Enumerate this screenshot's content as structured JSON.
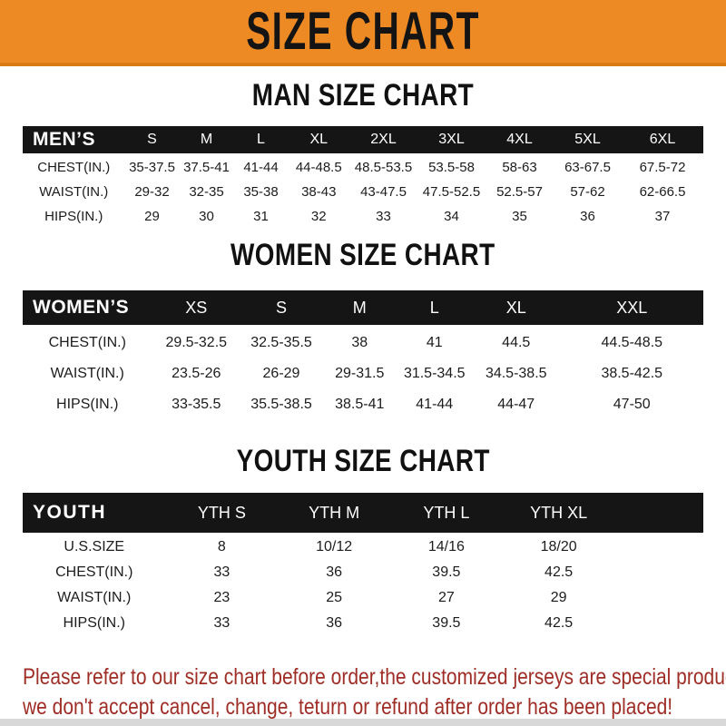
{
  "banner": {
    "title": "SIZE CHART"
  },
  "colors": {
    "banner_orange": "#ED8A23",
    "banner_edge_orange": "#D87B13",
    "header_bar_black": "#151515",
    "row_shade_gray": "#E6E5E5",
    "footer_red": "#9E2D26"
  },
  "sections": [
    {
      "id": "men",
      "heading": "MAN SIZE CHART",
      "table": {
        "label": "MEN’S",
        "columns": [
          "S",
          "M",
          "L",
          "XL",
          "2XL",
          "3XL",
          "4XL",
          "5XL",
          "6XL"
        ],
        "rows": [
          {
            "label": "CHEST(IN.)",
            "values": [
              "35-37.5",
              "37.5-41",
              "41-44",
              "44-48.5",
              "48.5-53.5",
              "53.5-58",
              "58-63",
              "63-67.5",
              "67.5-72"
            ]
          },
          {
            "label": "WAIST(IN.)",
            "values": [
              "29-32",
              "32-35",
              "35-38",
              "38-43",
              "43-47.5",
              "47.5-52.5",
              "52.5-57",
              "57-62",
              "62-66.5"
            ]
          },
          {
            "label": "HIPS(IN.)",
            "values": [
              "29",
              "30",
              "31",
              "32",
              "33",
              "34",
              "35",
              "36",
              "37"
            ]
          }
        ]
      }
    },
    {
      "id": "women",
      "heading": "WOMEN SIZE CHART",
      "table": {
        "label": "WOMEN’S",
        "columns": [
          "XS",
          "S",
          "M",
          "L",
          "XL",
          "XXL"
        ],
        "rows": [
          {
            "label": "CHEST(IN.)",
            "values": [
              "29.5-32.5",
              "32.5-35.5",
              "38",
              "41",
              "44.5",
              "44.5-48.5"
            ]
          },
          {
            "label": "WAIST(IN.)",
            "values": [
              "23.5-26",
              "26-29",
              "29-31.5",
              "31.5-34.5",
              "34.5-38.5",
              "38.5-42.5"
            ]
          },
          {
            "label": "HIPS(IN.)",
            "values": [
              "33-35.5",
              "35.5-38.5",
              "38.5-41",
              "41-44",
              "44-47",
              "47-50"
            ]
          }
        ]
      }
    },
    {
      "id": "youth",
      "heading": "YOUTH SIZE CHART",
      "table": {
        "label": "YOUTH",
        "columns": [
          "YTH S",
          "YTH M",
          "YTH L",
          "YTH XL"
        ],
        "rows": [
          {
            "label": "U.S.SIZE",
            "values": [
              "8",
              "10/12",
              "14/16",
              "18/20"
            ]
          },
          {
            "label": "CHEST(IN.)",
            "values": [
              "33",
              "36",
              "39.5",
              "42.5"
            ]
          },
          {
            "label": "WAIST(IN.)",
            "values": [
              "23",
              "25",
              "27",
              "29"
            ]
          },
          {
            "label": "HIPS(IN.)",
            "values": [
              "33",
              "36",
              "39.5",
              "42.5"
            ]
          }
        ]
      }
    }
  ],
  "footer": {
    "line1": "Please refer to our size chart before order,the customized jerseys are special products,",
    "line2": "we don't accept cancel, change, teturn or refund after order has been placed!"
  }
}
